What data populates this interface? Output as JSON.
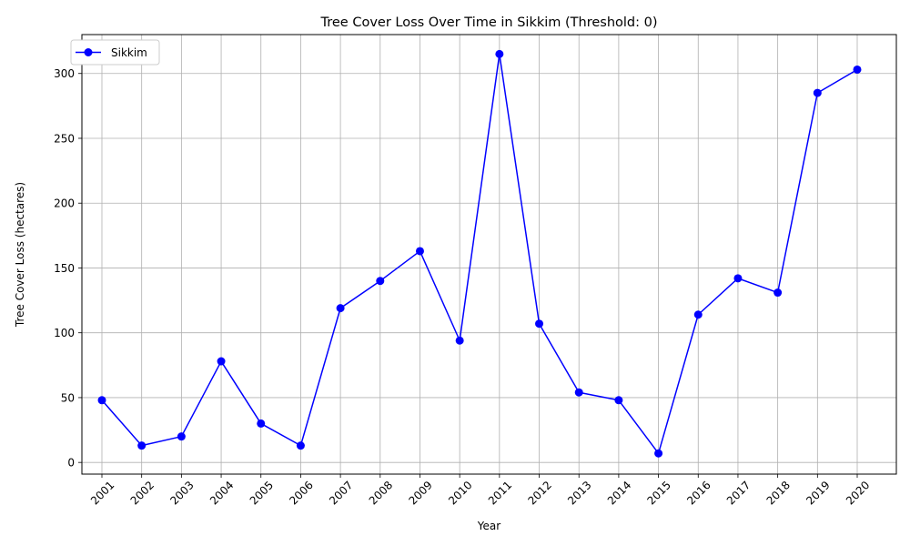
{
  "chart_data": {
    "type": "line",
    "title": "Tree Cover Loss Over Time in Sikkim (Threshold: 0)",
    "xlabel": "Year",
    "ylabel": "Tree Cover Loss (hectares)",
    "categories": [
      "2001",
      "2002",
      "2003",
      "2004",
      "2005",
      "2006",
      "2007",
      "2008",
      "2009",
      "2010",
      "2011",
      "2012",
      "2013",
      "2014",
      "2015",
      "2016",
      "2017",
      "2018",
      "2019",
      "2020"
    ],
    "series": [
      {
        "name": "Sikkim",
        "color": "#0000ff",
        "marker": "circle",
        "values": [
          48,
          13,
          20,
          78,
          30,
          13,
          119,
          140,
          163,
          94,
          315,
          107,
          54,
          48,
          7,
          114,
          142,
          131,
          285,
          303
        ]
      }
    ],
    "ylim": [
      -9,
      330
    ],
    "yticks": [
      0,
      50,
      100,
      150,
      200,
      250,
      300
    ],
    "grid": true,
    "legend": "top-left"
  }
}
